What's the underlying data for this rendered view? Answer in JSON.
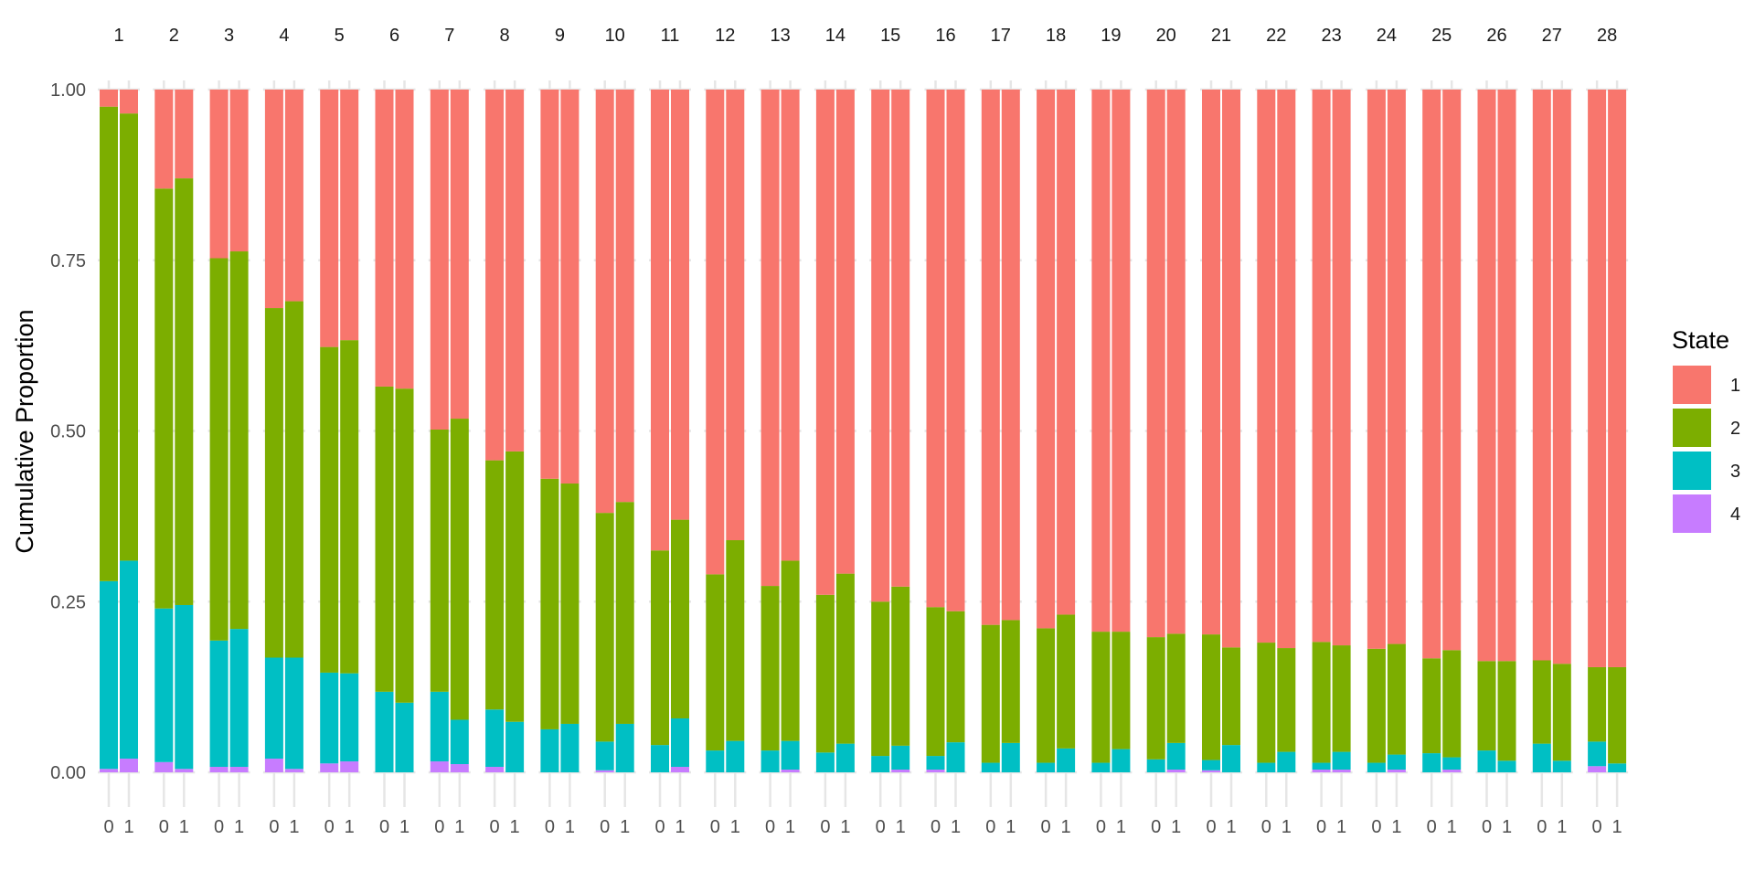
{
  "chart_data": {
    "type": "bar",
    "stacked": true,
    "ylabel": "Cumulative Proportion",
    "xlabel": "",
    "ylim": [
      0,
      1
    ],
    "y_ticks": [
      "0.00",
      "0.25",
      "0.50",
      "0.75",
      "1.00"
    ],
    "y_tick_values": [
      0,
      0.25,
      0.5,
      0.75,
      1
    ],
    "grid": true,
    "legend": {
      "title": "State",
      "placement": "right",
      "entries": [
        "1",
        "2",
        "3",
        "4"
      ]
    },
    "state_order": [
      "1",
      "2",
      "3",
      "4"
    ],
    "colors": {
      "1": "#F8766D",
      "2": "#7CAE00",
      "3": "#00BFC4",
      "4": "#C77CFF"
    },
    "x_categories": [
      "0",
      "1"
    ],
    "panels": [
      {
        "label": "1",
        "bars": [
          {
            "x": "0",
            "s4": 0.005,
            "s3": 0.275,
            "s2": 0.695
          },
          {
            "x": "1",
            "s4": 0.02,
            "s3": 0.29,
            "s2": 0.655
          }
        ]
      },
      {
        "label": "2",
        "bars": [
          {
            "x": "0",
            "s4": 0.015,
            "s3": 0.225,
            "s2": 0.615
          },
          {
            "x": "1",
            "s4": 0.005,
            "s3": 0.24,
            "s2": 0.625
          }
        ]
      },
      {
        "label": "3",
        "bars": [
          {
            "x": "0",
            "s4": 0.008,
            "s3": 0.185,
            "s2": 0.56
          },
          {
            "x": "1",
            "s4": 0.008,
            "s3": 0.202,
            "s2": 0.553
          }
        ]
      },
      {
        "label": "4",
        "bars": [
          {
            "x": "0",
            "s4": 0.02,
            "s3": 0.148,
            "s2": 0.512
          },
          {
            "x": "1",
            "s4": 0.005,
            "s3": 0.163,
            "s2": 0.522
          }
        ]
      },
      {
        "label": "5",
        "bars": [
          {
            "x": "0",
            "s4": 0.013,
            "s3": 0.133,
            "s2": 0.477
          },
          {
            "x": "1",
            "s4": 0.016,
            "s3": 0.129,
            "s2": 0.488
          }
        ]
      },
      {
        "label": "6",
        "bars": [
          {
            "x": "0",
            "s4": 0.0,
            "s3": 0.118,
            "s2": 0.447
          },
          {
            "x": "1",
            "s4": 0.0,
            "s3": 0.102,
            "s2": 0.46
          }
        ]
      },
      {
        "label": "7",
        "bars": [
          {
            "x": "0",
            "s4": 0.016,
            "s3": 0.102,
            "s2": 0.384
          },
          {
            "x": "1",
            "s4": 0.012,
            "s3": 0.065,
            "s2": 0.441
          }
        ]
      },
      {
        "label": "8",
        "bars": [
          {
            "x": "0",
            "s4": 0.008,
            "s3": 0.084,
            "s2": 0.365
          },
          {
            "x": "1",
            "s4": 0.0,
            "s3": 0.074,
            "s2": 0.396
          }
        ]
      },
      {
        "label": "9",
        "bars": [
          {
            "x": "0",
            "s4": 0.0,
            "s3": 0.063,
            "s2": 0.367
          },
          {
            "x": "1",
            "s4": 0.0,
            "s3": 0.071,
            "s2": 0.352
          }
        ]
      },
      {
        "label": "10",
        "bars": [
          {
            "x": "0",
            "s4": 0.003,
            "s3": 0.042,
            "s2": 0.335
          },
          {
            "x": "1",
            "s4": 0.0,
            "s3": 0.071,
            "s2": 0.325
          }
        ]
      },
      {
        "label": "11",
        "bars": [
          {
            "x": "0",
            "s4": 0.0,
            "s3": 0.04,
            "s2": 0.285
          },
          {
            "x": "1",
            "s4": 0.008,
            "s3": 0.071,
            "s2": 0.291
          }
        ]
      },
      {
        "label": "12",
        "bars": [
          {
            "x": "0",
            "s4": 0.0,
            "s3": 0.032,
            "s2": 0.258
          },
          {
            "x": "1",
            "s4": 0.0,
            "s3": 0.046,
            "s2": 0.294
          }
        ]
      },
      {
        "label": "13",
        "bars": [
          {
            "x": "0",
            "s4": 0.0,
            "s3": 0.032,
            "s2": 0.241
          },
          {
            "x": "1",
            "s4": 0.004,
            "s3": 0.042,
            "s2": 0.264
          }
        ]
      },
      {
        "label": "14",
        "bars": [
          {
            "x": "0",
            "s4": 0.0,
            "s3": 0.029,
            "s2": 0.231
          },
          {
            "x": "1",
            "s4": 0.0,
            "s3": 0.042,
            "s2": 0.249
          }
        ]
      },
      {
        "label": "15",
        "bars": [
          {
            "x": "0",
            "s4": 0.0,
            "s3": 0.024,
            "s2": 0.226
          },
          {
            "x": "1",
            "s4": 0.004,
            "s3": 0.035,
            "s2": 0.233
          }
        ]
      },
      {
        "label": "16",
        "bars": [
          {
            "x": "0",
            "s4": 0.004,
            "s3": 0.02,
            "s2": 0.218
          },
          {
            "x": "1",
            "s4": 0.0,
            "s3": 0.044,
            "s2": 0.192
          }
        ]
      },
      {
        "label": "17",
        "bars": [
          {
            "x": "0",
            "s4": 0.0,
            "s3": 0.014,
            "s2": 0.202
          },
          {
            "x": "1",
            "s4": 0.0,
            "s3": 0.043,
            "s2": 0.18
          }
        ]
      },
      {
        "label": "18",
        "bars": [
          {
            "x": "0",
            "s4": 0.0,
            "s3": 0.014,
            "s2": 0.197
          },
          {
            "x": "1",
            "s4": 0.0,
            "s3": 0.035,
            "s2": 0.196
          }
        ]
      },
      {
        "label": "19",
        "bars": [
          {
            "x": "0",
            "s4": 0.0,
            "s3": 0.014,
            "s2": 0.192
          },
          {
            "x": "1",
            "s4": 0.0,
            "s3": 0.034,
            "s2": 0.172
          }
        ]
      },
      {
        "label": "20",
        "bars": [
          {
            "x": "0",
            "s4": 0.0,
            "s3": 0.019,
            "s2": 0.179
          },
          {
            "x": "1",
            "s4": 0.004,
            "s3": 0.039,
            "s2": 0.16
          }
        ]
      },
      {
        "label": "21",
        "bars": [
          {
            "x": "0",
            "s4": 0.003,
            "s3": 0.015,
            "s2": 0.184
          },
          {
            "x": "1",
            "s4": 0.0,
            "s3": 0.04,
            "s2": 0.143
          }
        ]
      },
      {
        "label": "22",
        "bars": [
          {
            "x": "0",
            "s4": 0.0,
            "s3": 0.014,
            "s2": 0.176
          },
          {
            "x": "1",
            "s4": 0.0,
            "s3": 0.03,
            "s2": 0.152
          }
        ]
      },
      {
        "label": "23",
        "bars": [
          {
            "x": "0",
            "s4": 0.004,
            "s3": 0.01,
            "s2": 0.177
          },
          {
            "x": "1",
            "s4": 0.004,
            "s3": 0.026,
            "s2": 0.156
          }
        ]
      },
      {
        "label": "24",
        "bars": [
          {
            "x": "0",
            "s4": 0.0,
            "s3": 0.014,
            "s2": 0.167
          },
          {
            "x": "1",
            "s4": 0.004,
            "s3": 0.022,
            "s2": 0.162
          }
        ]
      },
      {
        "label": "25",
        "bars": [
          {
            "x": "0",
            "s4": 0.0,
            "s3": 0.028,
            "s2": 0.139
          },
          {
            "x": "1",
            "s4": 0.004,
            "s3": 0.018,
            "s2": 0.157
          }
        ]
      },
      {
        "label": "26",
        "bars": [
          {
            "x": "0",
            "s4": 0.0,
            "s3": 0.032,
            "s2": 0.131
          },
          {
            "x": "1",
            "s4": 0.0,
            "s3": 0.017,
            "s2": 0.146
          }
        ]
      },
      {
        "label": "27",
        "bars": [
          {
            "x": "0",
            "s4": 0.0,
            "s3": 0.042,
            "s2": 0.122
          },
          {
            "x": "1",
            "s4": 0.0,
            "s3": 0.017,
            "s2": 0.142
          }
        ]
      },
      {
        "label": "28",
        "bars": [
          {
            "x": "0",
            "s4": 0.009,
            "s3": 0.036,
            "s2": 0.109
          },
          {
            "x": "1",
            "s4": 0.0,
            "s3": 0.013,
            "s2": 0.141
          }
        ]
      }
    ]
  }
}
